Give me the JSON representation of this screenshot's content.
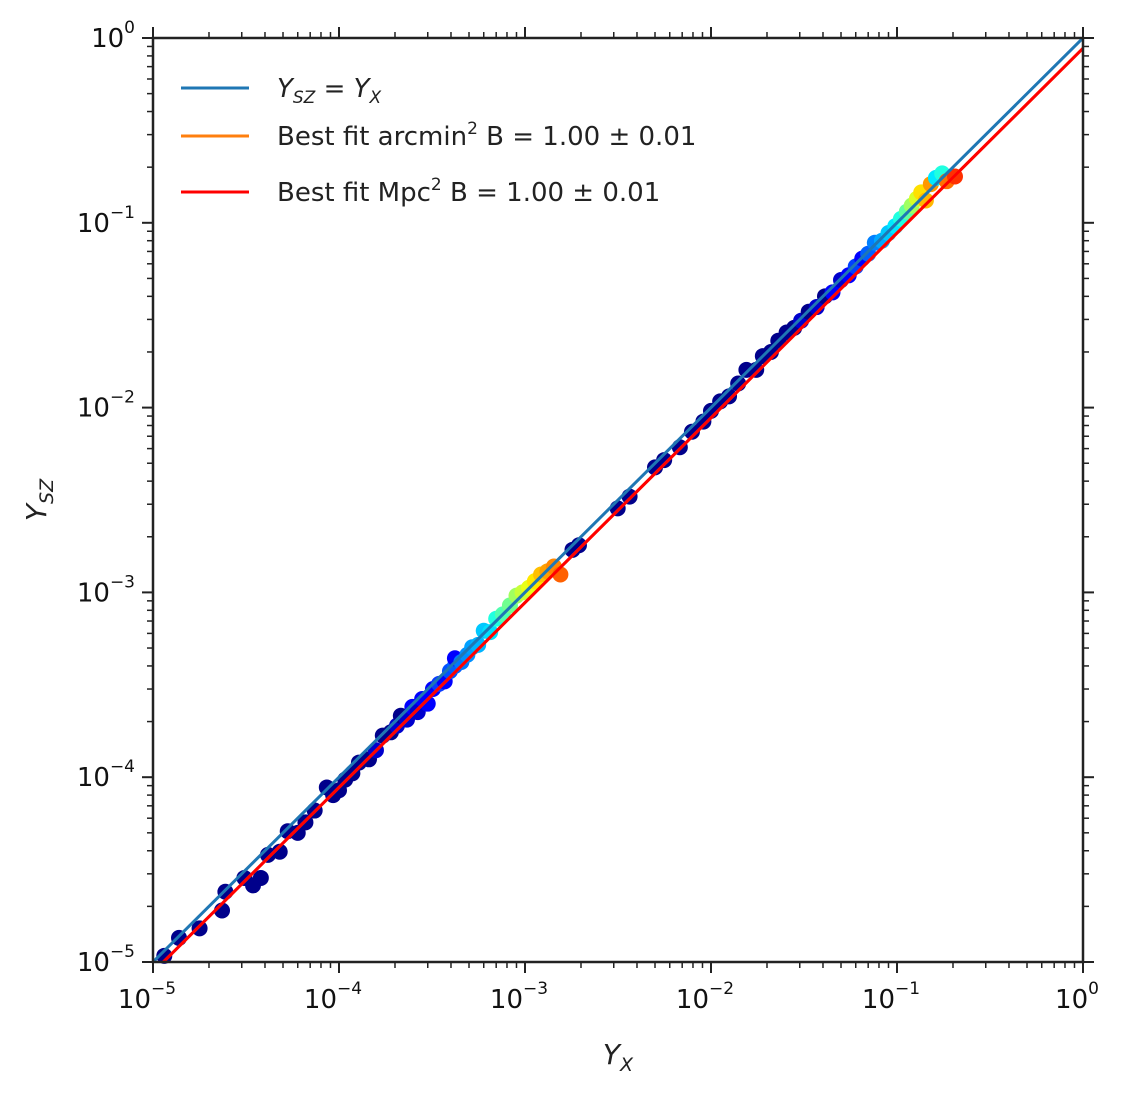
{
  "chart_data": {
    "type": "scatter",
    "xscale": "log",
    "yscale": "log",
    "xlim": [
      1e-05,
      1
    ],
    "ylim": [
      1e-05,
      1
    ],
    "grid": false,
    "legend_position": "top-left",
    "xlabel": {
      "base": "Y",
      "sub": "X"
    },
    "ylabel": {
      "base": "Y",
      "sub": "SZ"
    },
    "x_ticks": [
      {
        "value": 1e-05,
        "base": "10",
        "exp": "−5"
      },
      {
        "value": 0.0001,
        "base": "10",
        "exp": "−4"
      },
      {
        "value": 0.001,
        "base": "10",
        "exp": "−3"
      },
      {
        "value": 0.01,
        "base": "10",
        "exp": "−2"
      },
      {
        "value": 0.1,
        "base": "10",
        "exp": "−1"
      },
      {
        "value": 1,
        "base": "10",
        "exp": "0"
      }
    ],
    "y_ticks": [
      {
        "value": 1e-05,
        "base": "10",
        "exp": "−5"
      },
      {
        "value": 0.0001,
        "base": "10",
        "exp": "−4"
      },
      {
        "value": 0.001,
        "base": "10",
        "exp": "−3"
      },
      {
        "value": 0.01,
        "base": "10",
        "exp": "−2"
      },
      {
        "value": 0.1,
        "base": "10",
        "exp": "−1"
      },
      {
        "value": 1,
        "base": "10",
        "exp": "0"
      }
    ],
    "lines": [
      {
        "name_parts": {
          "a": "Y",
          "a_sub": "SZ",
          "eq": " = ",
          "b": "Y",
          "b_sub": "X"
        },
        "color": "#1f77b4",
        "x": [
          1e-05,
          1
        ],
        "y": [
          1e-05,
          1
        ]
      },
      {
        "name_parts": {
          "pre": "Best fit arcmin",
          "sup": "2",
          "post": " B = 1.00 ± 0.01"
        },
        "color": "#ff7f0e",
        "x": [
          1e-05,
          1
        ],
        "y": [
          8.8e-06,
          0.88
        ]
      },
      {
        "name_parts": {
          "pre": "Best fit Mpc",
          "sup": "2",
          "post": " B = 1.00 ± 0.01"
        },
        "color": "#ff0000",
        "x": [
          1e-05,
          1
        ],
        "y": [
          8.8e-06,
          0.88
        ]
      }
    ],
    "points": [
      {
        "x": 1.15e-05,
        "y": 1.08e-05,
        "color": "#00008b"
      },
      {
        "x": 1.38e-05,
        "y": 1.35e-05,
        "color": "#00008b"
      },
      {
        "x": 1.78e-05,
        "y": 1.52e-05,
        "color": "#00008b"
      },
      {
        "x": 2.35e-05,
        "y": 1.9e-05,
        "color": "#00008b"
      },
      {
        "x": 2.45e-05,
        "y": 2.4e-05,
        "color": "#00008b"
      },
      {
        "x": 3.1e-05,
        "y": 2.85e-05,
        "color": "#00008b"
      },
      {
        "x": 3.45e-05,
        "y": 2.6e-05,
        "color": "#00008b"
      },
      {
        "x": 3.8e-05,
        "y": 2.85e-05,
        "color": "#00008b"
      },
      {
        "x": 4.15e-05,
        "y": 3.8e-05,
        "color": "#00008b"
      },
      {
        "x": 4.8e-05,
        "y": 3.95e-05,
        "color": "#00008b"
      },
      {
        "x": 5.3e-05,
        "y": 5.1e-05,
        "color": "#00008b"
      },
      {
        "x": 6e-05,
        "y": 5e-05,
        "color": "#00008b"
      },
      {
        "x": 6.6e-05,
        "y": 5.7e-05,
        "color": "#00008b"
      },
      {
        "x": 7.4e-05,
        "y": 6.6e-05,
        "color": "#00008b"
      },
      {
        "x": 8.6e-05,
        "y": 8.8e-05,
        "color": "#00008b"
      },
      {
        "x": 9.3e-05,
        "y": 8e-05,
        "color": "#00008b"
      },
      {
        "x": 0.0001,
        "y": 8.5e-05,
        "color": "#00008b"
      },
      {
        "x": 0.000108,
        "y": 9.7e-05,
        "color": "#00008b"
      },
      {
        "x": 0.000118,
        "y": 0.000105,
        "color": "#00008b"
      },
      {
        "x": 0.000128,
        "y": 0.00012,
        "color": "#00008b"
      },
      {
        "x": 0.000145,
        "y": 0.000125,
        "color": "#00008b"
      },
      {
        "x": 0.000158,
        "y": 0.00014,
        "color": "#0000cd"
      },
      {
        "x": 0.000172,
        "y": 0.000168,
        "color": "#00008b"
      },
      {
        "x": 0.00019,
        "y": 0.000175,
        "color": "#00008b"
      },
      {
        "x": 0.000205,
        "y": 0.00019,
        "color": "#0000cd"
      },
      {
        "x": 0.000215,
        "y": 0.000215,
        "color": "#00008b"
      },
      {
        "x": 0.000232,
        "y": 0.000205,
        "color": "#0000cd"
      },
      {
        "x": 0.000248,
        "y": 0.00024,
        "color": "#0000ff"
      },
      {
        "x": 0.000265,
        "y": 0.000225,
        "color": "#0000cd"
      },
      {
        "x": 0.00028,
        "y": 0.000265,
        "color": "#0000ff"
      },
      {
        "x": 0.0003,
        "y": 0.00025,
        "color": "#0000ff"
      },
      {
        "x": 0.00032,
        "y": 0.0003,
        "color": "#0000ff"
      },
      {
        "x": 0.000345,
        "y": 0.00032,
        "color": "#0a3cff"
      },
      {
        "x": 0.00037,
        "y": 0.00033,
        "color": "#0000ff"
      },
      {
        "x": 0.000395,
        "y": 0.000375,
        "color": "#0050ff"
      },
      {
        "x": 0.00042,
        "y": 0.0004,
        "color": "#0060ff"
      },
      {
        "x": 0.00042,
        "y": 0.00044,
        "color": "#0000ff"
      },
      {
        "x": 0.000455,
        "y": 0.00042,
        "color": "#0078ff"
      },
      {
        "x": 0.00049,
        "y": 0.00046,
        "color": "#0090ff"
      },
      {
        "x": 0.00052,
        "y": 0.000505,
        "color": "#00a0ff"
      },
      {
        "x": 0.00056,
        "y": 0.00052,
        "color": "#00b4ff"
      },
      {
        "x": 0.0006,
        "y": 0.00062,
        "color": "#00c8ff"
      },
      {
        "x": 0.00065,
        "y": 0.00061,
        "color": "#00e0ff"
      },
      {
        "x": 0.0007,
        "y": 0.00072,
        "color": "#20ffe0"
      },
      {
        "x": 0.00076,
        "y": 0.00076,
        "color": "#50ffb0"
      },
      {
        "x": 0.00083,
        "y": 0.00085,
        "color": "#70ff90"
      },
      {
        "x": 0.0009,
        "y": 0.00096,
        "color": "#a0ff60"
      },
      {
        "x": 0.00097,
        "y": 0.001,
        "color": "#c8ff38"
      },
      {
        "x": 0.00105,
        "y": 0.00106,
        "color": "#e8ff18"
      },
      {
        "x": 0.00113,
        "y": 0.00115,
        "color": "#ffe800"
      },
      {
        "x": 0.00122,
        "y": 0.00125,
        "color": "#ffc000"
      },
      {
        "x": 0.00132,
        "y": 0.0013,
        "color": "#ffa000"
      },
      {
        "x": 0.00143,
        "y": 0.00138,
        "color": "#ff8800"
      },
      {
        "x": 0.00155,
        "y": 0.00125,
        "color": "#ff6000"
      },
      {
        "x": 0.0018,
        "y": 0.0017,
        "color": "#00008b"
      },
      {
        "x": 0.00195,
        "y": 0.0018,
        "color": "#00008b"
      },
      {
        "x": 0.00315,
        "y": 0.00285,
        "color": "#00008b"
      },
      {
        "x": 0.00365,
        "y": 0.0033,
        "color": "#00008b"
      },
      {
        "x": 0.005,
        "y": 0.00475,
        "color": "#00008b"
      },
      {
        "x": 0.0056,
        "y": 0.0052,
        "color": "#00008b"
      },
      {
        "x": 0.0068,
        "y": 0.0061,
        "color": "#00008b"
      },
      {
        "x": 0.0079,
        "y": 0.0074,
        "color": "#00008b"
      },
      {
        "x": 0.0091,
        "y": 0.0084,
        "color": "#00008b"
      },
      {
        "x": 0.01,
        "y": 0.0096,
        "color": "#00008b"
      },
      {
        "x": 0.0112,
        "y": 0.0108,
        "color": "#00008b"
      },
      {
        "x": 0.0125,
        "y": 0.0115,
        "color": "#00008b"
      },
      {
        "x": 0.014,
        "y": 0.0135,
        "color": "#00008b"
      },
      {
        "x": 0.0155,
        "y": 0.016,
        "color": "#00008b"
      },
      {
        "x": 0.0175,
        "y": 0.016,
        "color": "#00008b"
      },
      {
        "x": 0.019,
        "y": 0.019,
        "color": "#00008b"
      },
      {
        "x": 0.021,
        "y": 0.02,
        "color": "#00008b"
      },
      {
        "x": 0.023,
        "y": 0.023,
        "color": "#00008b"
      },
      {
        "x": 0.0255,
        "y": 0.0255,
        "color": "#00008b"
      },
      {
        "x": 0.028,
        "y": 0.027,
        "color": "#00008b"
      },
      {
        "x": 0.0305,
        "y": 0.0295,
        "color": "#0000cd"
      },
      {
        "x": 0.0335,
        "y": 0.033,
        "color": "#00008b"
      },
      {
        "x": 0.037,
        "y": 0.035,
        "color": "#0000cd"
      },
      {
        "x": 0.041,
        "y": 0.04,
        "color": "#00008b"
      },
      {
        "x": 0.045,
        "y": 0.042,
        "color": "#0000ff"
      },
      {
        "x": 0.05,
        "y": 0.049,
        "color": "#0000cd"
      },
      {
        "x": 0.055,
        "y": 0.052,
        "color": "#0000ff"
      },
      {
        "x": 0.06,
        "y": 0.058,
        "color": "#0040ff"
      },
      {
        "x": 0.065,
        "y": 0.064,
        "color": "#0000ff"
      },
      {
        "x": 0.07,
        "y": 0.068,
        "color": "#0060ff"
      },
      {
        "x": 0.076,
        "y": 0.078,
        "color": "#0080ff"
      },
      {
        "x": 0.083,
        "y": 0.08,
        "color": "#00a8ff"
      },
      {
        "x": 0.09,
        "y": 0.088,
        "color": "#00c8ff"
      },
      {
        "x": 0.098,
        "y": 0.096,
        "color": "#00e8ff"
      },
      {
        "x": 0.105,
        "y": 0.105,
        "color": "#20ffe0"
      },
      {
        "x": 0.113,
        "y": 0.115,
        "color": "#60ffa0"
      },
      {
        "x": 0.12,
        "y": 0.124,
        "color": "#a0ff60"
      },
      {
        "x": 0.128,
        "y": 0.135,
        "color": "#d8ff28"
      },
      {
        "x": 0.135,
        "y": 0.146,
        "color": "#ffe000"
      },
      {
        "x": 0.143,
        "y": 0.132,
        "color": "#ffb800"
      },
      {
        "x": 0.152,
        "y": 0.162,
        "color": "#ff9800"
      },
      {
        "x": 0.162,
        "y": 0.175,
        "color": "#00e8ff"
      },
      {
        "x": 0.175,
        "y": 0.185,
        "color": "#20ffe0"
      },
      {
        "x": 0.185,
        "y": 0.168,
        "color": "#ff7000"
      },
      {
        "x": 0.205,
        "y": 0.178,
        "color": "#ff3000"
      }
    ]
  }
}
